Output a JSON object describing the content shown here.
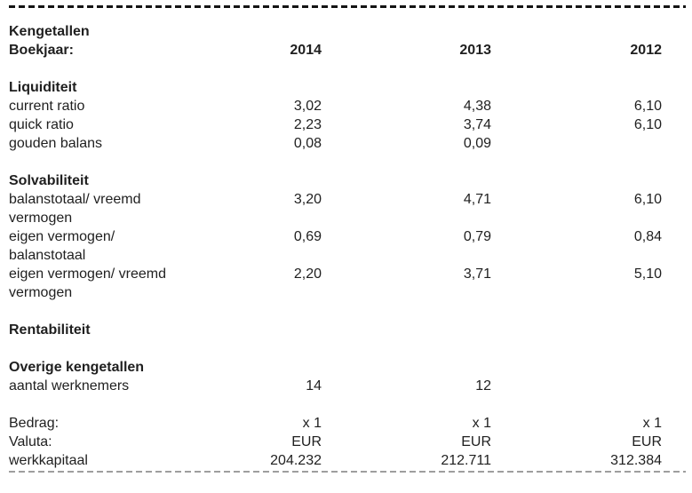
{
  "page": {
    "title": "Kengetallen",
    "boekjaar_label": "Boekjaar:",
    "years": [
      "2014",
      "2013",
      "2012"
    ]
  },
  "sections": [
    {
      "heading": "Liquiditeit",
      "rows": [
        {
          "label": "current ratio",
          "values": [
            "3,02",
            "4,38",
            "6,10"
          ]
        },
        {
          "label": "quick ratio",
          "values": [
            "2,23",
            "3,74",
            "6,10"
          ]
        },
        {
          "label": "gouden balans",
          "values": [
            "0,08",
            "0,09",
            ""
          ]
        }
      ]
    },
    {
      "heading": "Solvabiliteit",
      "rows": [
        {
          "label": "balanstotaal/ vreemd vermogen",
          "values": [
            "3,20",
            "4,71",
            "6,10"
          ]
        },
        {
          "label": "eigen vermogen/ balanstotaal",
          "values": [
            "0,69",
            "0,79",
            "0,84"
          ]
        },
        {
          "label": "eigen vermogen/ vreemd vermogen",
          "values": [
            "2,20",
            "3,71",
            "5,10"
          ]
        }
      ]
    },
    {
      "heading": "Rentabiliteit",
      "rows": []
    },
    {
      "heading": "Overige kengetallen",
      "rows": [
        {
          "label": "aantal werknemers",
          "values": [
            "14",
            "12",
            ""
          ]
        }
      ]
    }
  ],
  "footer": {
    "rows": [
      {
        "label": "Bedrag:",
        "values": [
          "x 1",
          "x 1",
          "x 1"
        ]
      },
      {
        "label": "Valuta:",
        "values": [
          "EUR",
          "EUR",
          "EUR"
        ]
      },
      {
        "label": "werkkapitaal",
        "values": [
          "204.232",
          "212.711",
          "312.384"
        ]
      }
    ]
  },
  "colors": {
    "text": "#1f1f1f",
    "top_rule": "#141414",
    "bottom_rule": "#8a8a8a",
    "background": "#ffffff"
  }
}
